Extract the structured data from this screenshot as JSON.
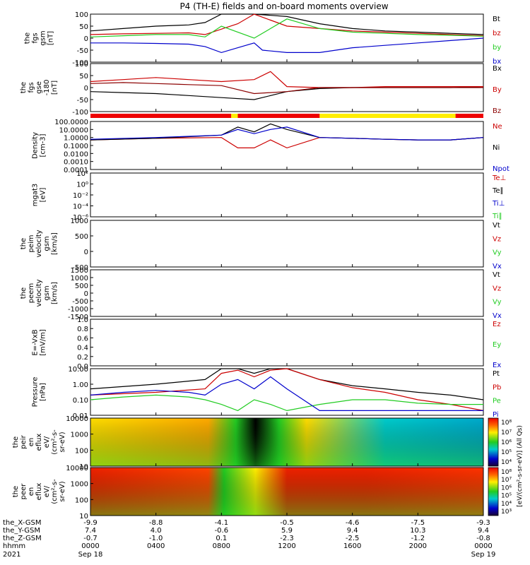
{
  "title": "P4 (TH-E) fields and on-board moments overview",
  "colors": {
    "black": "#000000",
    "red": "#cc0000",
    "green": "#22cc22",
    "blue": "#0000cc",
    "darkred": "#8b0000",
    "yellow": "#ffee00",
    "barred": "#ee0000"
  },
  "chart_data": [
    {
      "type": "line",
      "panel": "fgs_gsm",
      "ylabel": [
        "the",
        "fgs",
        "gsm",
        "[nT]"
      ],
      "ylim": [
        -100,
        100
      ],
      "ticks": [
        "100",
        "50",
        "0",
        "-50",
        "-100"
      ],
      "legend": [
        {
          "name": "Bt",
          "color": "#000000"
        },
        {
          "name": "bz",
          "color": "#cc0000"
        },
        {
          "name": "by",
          "color": "#22cc22"
        },
        {
          "name": "bx",
          "color": "#0000cc"
        }
      ],
      "series": [
        {
          "name": "Bt",
          "x": [
            0,
            2,
            4,
            6,
            7,
            8,
            9,
            10,
            12,
            14,
            16,
            18,
            20,
            22,
            24
          ],
          "y": [
            30,
            40,
            50,
            55,
            65,
            100,
            100,
            100,
            90,
            60,
            40,
            30,
            25,
            20,
            15
          ]
        },
        {
          "name": "bz",
          "x": [
            0,
            2,
            4,
            6,
            7,
            9,
            10,
            11,
            12,
            14,
            16,
            18,
            20,
            22,
            24
          ],
          "y": [
            15,
            18,
            20,
            22,
            15,
            60,
            100,
            75,
            50,
            40,
            30,
            25,
            20,
            15,
            10
          ]
        },
        {
          "name": "by",
          "x": [
            0,
            2,
            4,
            6,
            7,
            8,
            10,
            12,
            14,
            16,
            18,
            20,
            22,
            24
          ],
          "y": [
            5,
            10,
            15,
            15,
            5,
            50,
            0,
            80,
            40,
            25,
            20,
            15,
            12,
            8
          ]
        },
        {
          "name": "bx",
          "x": [
            0,
            2,
            4,
            6,
            7,
            8,
            9,
            10,
            10.5,
            12,
            14,
            16,
            18,
            20,
            22,
            24
          ],
          "y": [
            -20,
            -20,
            -22,
            -25,
            -35,
            -60,
            -40,
            -20,
            -50,
            -60,
            -60,
            -40,
            -30,
            -20,
            -10,
            0
          ]
        }
      ]
    },
    {
      "type": "line",
      "panel": "fgs_gse",
      "ylabel": [
        "the",
        "fgs",
        "gse",
        "-180",
        "[nT]"
      ],
      "ylim": [
        -120,
        120
      ],
      "ticks": [
        "100",
        "50",
        "0",
        "-50",
        "-100"
      ],
      "legend": [
        {
          "name": "Bx",
          "color": "#000000"
        },
        {
          "name": "By",
          "color": "#cc0000"
        },
        {
          "name": "Bz",
          "color": "#8b0000"
        }
      ],
      "series": [
        {
          "name": "Bx",
          "x": [
            0,
            2,
            4,
            6,
            8,
            10,
            12,
            14,
            16,
            18,
            20,
            22,
            24
          ],
          "y": [
            -20,
            -25,
            -30,
            -40,
            -50,
            -60,
            -20,
            -5,
            0,
            0,
            0,
            0,
            5
          ]
        },
        {
          "name": "By",
          "x": [
            0,
            2,
            4,
            6,
            8,
            10,
            11,
            12,
            14,
            16,
            18,
            20,
            22,
            24
          ],
          "y": [
            30,
            40,
            50,
            40,
            30,
            40,
            80,
            5,
            0,
            0,
            5,
            5,
            5,
            5
          ]
        },
        {
          "name": "Bz",
          "x": [
            0,
            2,
            4,
            6,
            8,
            10,
            12,
            14,
            16,
            18,
            20,
            22,
            24
          ],
          "y": [
            20,
            25,
            20,
            15,
            10,
            -30,
            -20,
            0,
            0,
            0,
            0,
            0,
            0
          ]
        }
      ]
    },
    {
      "type": "line",
      "panel": "density",
      "ylabel": [
        "Density",
        "[cm-3]"
      ],
      "scale": "log",
      "ylim": [
        0.0001,
        100
      ],
      "ticks": [
        "100.0000",
        "10.0000",
        "1.0000",
        "0.1000",
        "0.0100",
        "0.0010",
        "0.0001"
      ],
      "legend": [
        {
          "name": "Ne",
          "color": "#cc0000"
        },
        {
          "name": "Ni",
          "color": "#000000"
        },
        {
          "name": "Npot",
          "color": "#0000cc"
        }
      ],
      "series": [
        {
          "name": "Ne",
          "x": [
            0,
            4,
            8,
            9,
            10,
            11,
            12,
            14,
            16,
            18,
            20,
            22,
            24
          ],
          "y": [
            0.5,
            0.8,
            1.0,
            0.05,
            0.05,
            0.5,
            0.05,
            1.0,
            0.8,
            0.6,
            0.5,
            0.5,
            1.0
          ]
        },
        {
          "name": "Ni",
          "x": [
            0,
            4,
            8,
            9,
            10,
            11,
            12,
            14,
            16,
            18,
            20,
            22,
            24
          ],
          "y": [
            0.5,
            0.8,
            2,
            20,
            5,
            50,
            10,
            1,
            0.8,
            0.6,
            0.5,
            0.5,
            1
          ]
        },
        {
          "name": "Npot",
          "x": [
            0,
            4,
            8,
            9,
            10,
            11,
            12,
            14,
            16,
            18,
            20,
            22,
            24
          ],
          "y": [
            0.6,
            1,
            2,
            10,
            3,
            10,
            20,
            1,
            0.8,
            0.6,
            0.5,
            0.5,
            1
          ]
        }
      ]
    },
    {
      "type": "line",
      "panel": "mgat3",
      "ylabel": [
        "mgat3",
        "[eV]"
      ],
      "scale": "log",
      "ticks": [
        "10²",
        "10⁰",
        "10⁻²",
        "10⁻⁴",
        "10⁻⁶"
      ],
      "legend": [
        {
          "name": "Te⊥",
          "color": "#cc0000"
        },
        {
          "name": "Te∥",
          "color": "#000000"
        },
        {
          "name": "Ti⊥",
          "color": "#0000cc"
        },
        {
          "name": "Ti∥",
          "color": "#22cc22"
        }
      ]
    },
    {
      "type": "line",
      "panel": "peim_velocity",
      "ylabel": [
        "the",
        "peim",
        "velocity",
        "gsm",
        "[km/s]"
      ],
      "ylim": [
        -500,
        1000
      ],
      "ticks": [
        "1000",
        "500",
        "0",
        "-500"
      ],
      "legend": [
        {
          "name": "Vt",
          "color": "#000000"
        },
        {
          "name": "Vz",
          "color": "#cc0000"
        },
        {
          "name": "Vy",
          "color": "#22cc22"
        },
        {
          "name": "Vx",
          "color": "#0000cc"
        }
      ]
    },
    {
      "type": "line",
      "panel": "peem_velocity",
      "ylabel": [
        "the",
        "peem",
        "velocity",
        "gsm",
        "[km/s]"
      ],
      "ylim": [
        -1500,
        1500
      ],
      "ticks": [
        "1500",
        "1000",
        "500",
        "0",
        "-500",
        "-1000",
        "-1500"
      ],
      "legend": [
        {
          "name": "Vt",
          "color": "#000000"
        },
        {
          "name": "Vz",
          "color": "#cc0000"
        },
        {
          "name": "Vy",
          "color": "#22cc22"
        },
        {
          "name": "Vx",
          "color": "#0000cc"
        }
      ]
    },
    {
      "type": "line",
      "panel": "efield",
      "ylabel": [
        "E=-VxB",
        "[mV/m]"
      ],
      "ylim": [
        0,
        1
      ],
      "ticks": [
        "1.0",
        "0.8",
        "0.6",
        "0.4",
        "0.2",
        "0.0"
      ],
      "legend": [
        {
          "name": "Ez",
          "color": "#cc0000"
        },
        {
          "name": "Ey",
          "color": "#22cc22"
        },
        {
          "name": "Ex",
          "color": "#0000cc"
        }
      ]
    },
    {
      "type": "line",
      "panel": "pressure",
      "ylabel": [
        "Pressure",
        "[nPa]"
      ],
      "scale": "log",
      "ylim": [
        0.01,
        10
      ],
      "ticks": [
        "10.00",
        "1.00",
        "0.10",
        "0.01"
      ],
      "legend": [
        {
          "name": "Pt",
          "color": "#000000"
        },
        {
          "name": "Pb",
          "color": "#cc0000"
        },
        {
          "name": "Pe",
          "color": "#22cc22"
        },
        {
          "name": "Pi",
          "color": "#0000cc"
        }
      ],
      "series": [
        {
          "name": "Pt",
          "x": [
            0,
            4,
            7,
            8,
            9,
            10,
            11,
            12,
            14,
            16,
            18,
            20,
            22,
            24
          ],
          "y": [
            0.5,
            1,
            2,
            10,
            10,
            5,
            10,
            10,
            2,
            0.8,
            0.5,
            0.3,
            0.2,
            0.1
          ]
        },
        {
          "name": "Pb",
          "x": [
            0,
            4,
            7,
            8,
            9,
            10,
            11,
            12,
            14,
            16,
            18,
            20,
            22,
            24
          ],
          "y": [
            0.2,
            0.3,
            0.5,
            5,
            8,
            3,
            8,
            10,
            2,
            0.6,
            0.3,
            0.1,
            0.05,
            0.02
          ]
        },
        {
          "name": "Pe",
          "x": [
            0,
            2,
            4,
            6,
            7,
            8,
            9,
            10,
            11,
            12,
            14,
            16,
            18,
            20,
            22,
            24
          ],
          "y": [
            0.1,
            0.15,
            0.2,
            0.15,
            0.1,
            0.05,
            0.02,
            0.1,
            0.05,
            0.02,
            0.05,
            0.1,
            0.1,
            0.06,
            0.05,
            0.05
          ]
        },
        {
          "name": "Pi",
          "x": [
            0,
            2,
            4,
            6,
            7,
            8,
            9,
            10,
            11,
            12,
            14,
            16,
            18,
            20,
            22,
            24
          ],
          "y": [
            0.2,
            0.3,
            0.4,
            0.3,
            0.2,
            1,
            2,
            0.5,
            3,
            0.5,
            0.02,
            0.02,
            0.02,
            0.02,
            0.02,
            0.02
          ]
        }
      ]
    },
    {
      "type": "heatmap",
      "panel": "peir_en_eflux",
      "ylabel": [
        "the",
        "peir",
        "en",
        "eflux",
        "eV/",
        "(cm²-s-",
        "sr-eV)"
      ],
      "scale": "log",
      "ticks": [
        "10000",
        "1000",
        "100",
        "10"
      ],
      "colorbar_ticks": [
        "10⁸",
        "10⁷",
        "10⁶",
        "10⁵",
        "10⁴"
      ]
    },
    {
      "type": "heatmap",
      "panel": "peer_en_eflux",
      "ylabel": [
        "the",
        "peer",
        "en",
        "eflux",
        "eV/",
        "(cm²-s-",
        "sr-eV)"
      ],
      "scale": "log",
      "ticks": [
        "10000",
        "1000",
        "100",
        "10"
      ],
      "colorbar_ticks": [
        "10⁸",
        "10⁷",
        "10⁶",
        "10⁵",
        "10⁴",
        "10³"
      ],
      "colorbar_label": "[eV/(cm²-s-sr-eV)] (All Qs)"
    }
  ],
  "xaxis": {
    "row_labels": [
      "the_X-GSM",
      "the_Y-GSM",
      "the_Z-GSM",
      "hhmm",
      "2021"
    ],
    "ticks": [
      {
        "x": 0,
        "vals": [
          "-9.9",
          "7.4",
          "-0.7",
          "0000",
          "Sep 18"
        ]
      },
      {
        "x": 4,
        "vals": [
          "-8.8",
          "4.0",
          "-1.0",
          "0400",
          ""
        ]
      },
      {
        "x": 8,
        "vals": [
          "-4.1",
          "-0.6",
          "0.1",
          "0800",
          ""
        ]
      },
      {
        "x": 12,
        "vals": [
          "-0.5",
          "5.9",
          "-2.3",
          "1200",
          ""
        ]
      },
      {
        "x": 16,
        "vals": [
          "-4.6",
          "9.4",
          "-2.5",
          "1600",
          ""
        ]
      },
      {
        "x": 20,
        "vals": [
          "-7.5",
          "10.3",
          "-1.2",
          "2000",
          ""
        ]
      },
      {
        "x": 24,
        "vals": [
          "-9.3",
          "9.4",
          "-0.8",
          "0000",
          "Sep 19"
        ]
      }
    ]
  },
  "mode_bar": [
    {
      "x0": 0,
      "x1": 8.6,
      "color": "red"
    },
    {
      "x0": 8.6,
      "x1": 9.0,
      "color": "yellow"
    },
    {
      "x0": 9.0,
      "x1": 14.0,
      "color": "red"
    },
    {
      "x0": 14.0,
      "x1": 22.3,
      "color": "yellow"
    },
    {
      "x0": 22.3,
      "x1": 24,
      "color": "red"
    }
  ]
}
